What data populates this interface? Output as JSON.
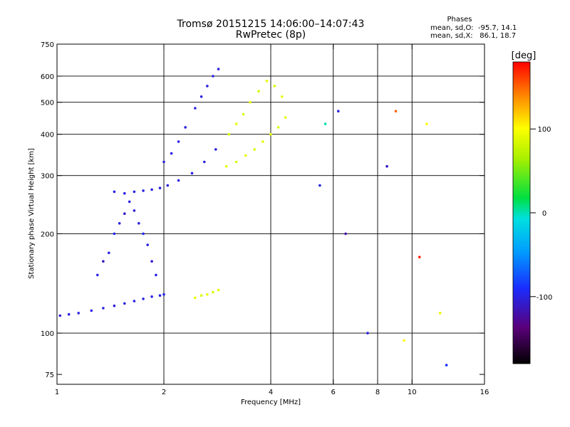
{
  "header": {
    "title": "Tromsø 20151215 14:06:00–14:07:43",
    "subtitle": "RwPretec (8p)",
    "phases_heading": "Phases",
    "phase_o": "mean, sd,O:  -95.7, 14.1",
    "phase_x": "mean, sd,X:   86.1, 18.7"
  },
  "colorbar": {
    "label": "[deg]",
    "range": [
      -180,
      180
    ],
    "ticks": [
      {
        "value": 100,
        "label": "100"
      },
      {
        "value": 0,
        "label": "0"
      },
      {
        "value": -100,
        "label": "-100"
      }
    ]
  },
  "chart_data": {
    "type": "scatter",
    "title": "Tromsø 20151215 14:06:00–14:07:43",
    "subtitle": "RwPretec (8p)",
    "xlabel": "Frequency [MHz]",
    "ylabel": "Stationary phase Virtual Height [km]",
    "xscale": "log",
    "yscale": "log",
    "xlim": [
      1,
      16
    ],
    "ylim": [
      70,
      750
    ],
    "grid": true,
    "xticks": [
      {
        "value": 1,
        "label": "1"
      },
      {
        "value": 2,
        "label": "2"
      },
      {
        "value": 4,
        "label": "4"
      },
      {
        "value": 6,
        "label": "6"
      },
      {
        "value": 8,
        "label": "8"
      },
      {
        "value": 10,
        "label": "10"
      },
      {
        "value": 16,
        "label": "16"
      }
    ],
    "yticks": [
      {
        "value": 75,
        "label": "75"
      },
      {
        "value": 100,
        "label": "100"
      },
      {
        "value": 200,
        "label": "200"
      },
      {
        "value": 300,
        "label": "300"
      },
      {
        "value": 400,
        "label": "400"
      },
      {
        "value": 500,
        "label": "500"
      },
      {
        "value": 600,
        "label": "600"
      },
      {
        "value": 750,
        "label": "750"
      }
    ],
    "xgrid": [
      2,
      4,
      6,
      8,
      10
    ],
    "ygrid": [
      100,
      200,
      300,
      400,
      500,
      600
    ],
    "color_scale": "phase [deg], -180 to 180",
    "series": [
      {
        "x": [
          1.02,
          1.08,
          1.15,
          1.25,
          1.35,
          1.45,
          1.55,
          1.65,
          1.75,
          1.85,
          1.95,
          2.0
        ],
        "y": [
          113,
          114,
          115,
          117,
          119,
          121,
          123,
          125,
          127,
          129,
          130,
          131
        ],
        "phase": [
          -105,
          -100,
          -100,
          -100,
          -100,
          -105,
          -100,
          -100,
          -100,
          -100,
          -100,
          -100
        ]
      },
      {
        "x": [
          1.3,
          1.35,
          1.4,
          1.45,
          1.5,
          1.55,
          1.6,
          1.65,
          1.7,
          1.75,
          1.8,
          1.85,
          1.9
        ],
        "y": [
          150,
          165,
          175,
          200,
          215,
          230,
          250,
          235,
          215,
          200,
          185,
          165,
          150
        ],
        "phase": [
          -100,
          -110,
          -100,
          -95,
          -100,
          -110,
          -100,
          -105,
          -100,
          -95,
          -100,
          -105,
          -100
        ]
      },
      {
        "x": [
          1.45,
          1.55,
          1.65,
          1.75,
          1.85,
          1.95,
          2.05,
          2.2,
          2.4,
          2.6,
          2.8
        ],
        "y": [
          268,
          265,
          268,
          270,
          272,
          275,
          280,
          290,
          305,
          330,
          360
        ],
        "phase": [
          -100,
          -100,
          -100,
          -100,
          -100,
          -100,
          -100,
          -100,
          -100,
          -100,
          -100
        ]
      },
      {
        "x": [
          2.0,
          2.1,
          2.2,
          2.3,
          2.45,
          2.55,
          2.65,
          2.75,
          2.85
        ],
        "y": [
          330,
          350,
          380,
          420,
          480,
          520,
          560,
          600,
          630
        ],
        "phase": [
          -100,
          -100,
          -100,
          -100,
          -100,
          -100,
          -100,
          -100,
          -100
        ]
      },
      {
        "x": [
          3.0,
          3.2,
          3.4,
          3.6,
          3.8,
          4.0,
          4.2,
          4.4
        ],
        "y": [
          320,
          330,
          345,
          360,
          380,
          400,
          420,
          450
        ],
        "phase": [
          90,
          85,
          90,
          85,
          90,
          90,
          85,
          90
        ]
      },
      {
        "x": [
          3.05,
          3.2,
          3.35,
          3.5,
          3.7,
          3.9,
          4.1,
          4.3
        ],
        "y": [
          400,
          430,
          460,
          500,
          540,
          580,
          560,
          520
        ],
        "phase": [
          85,
          90,
          85,
          90,
          85,
          90,
          85,
          90
        ]
      },
      {
        "x": [
          2.45,
          2.55,
          2.65,
          2.75,
          2.85
        ],
        "y": [
          128,
          130,
          131,
          133,
          135
        ],
        "phase": [
          90,
          85,
          90,
          85,
          90
        ]
      },
      {
        "x": [
          5.5,
          5.7,
          6.2,
          6.5,
          7.5,
          8.5,
          9.0,
          9.5,
          10.5,
          11.0,
          12.0,
          12.5
        ],
        "y": [
          280,
          430,
          470,
          200,
          100,
          320,
          470,
          95,
          170,
          430,
          115,
          80
        ],
        "phase": [
          -100,
          0,
          -100,
          -120,
          -100,
          -110,
          150,
          100,
          170,
          100,
          90,
          -90
        ]
      }
    ]
  }
}
